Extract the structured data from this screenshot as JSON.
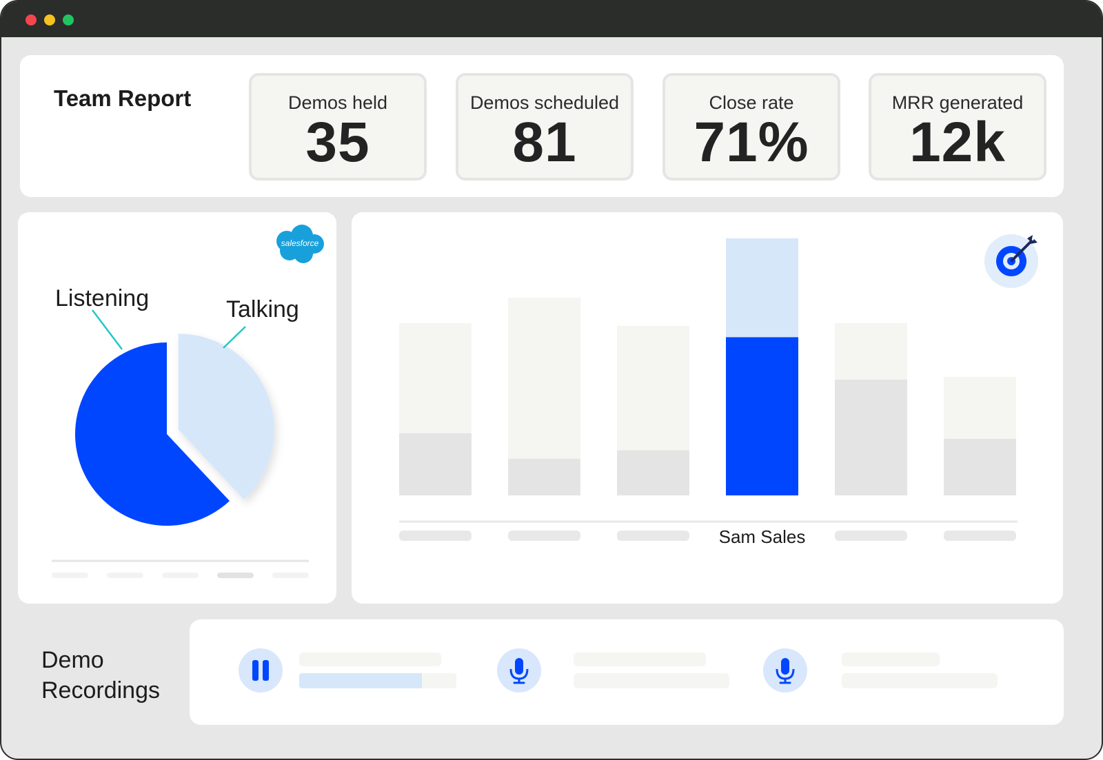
{
  "colors": {
    "accent": "#0046ff",
    "accent_light": "#d6e7fa",
    "bar_top": "#f5f5f2",
    "bar_bottom": "#e4e4e4",
    "chrome": "#2b2d2b",
    "teal": "#22c8c4"
  },
  "window": {
    "controls": [
      "close",
      "minimize",
      "maximize"
    ]
  },
  "report": {
    "title": "Team Report",
    "stats": [
      {
        "label": "Demos held",
        "value": "35"
      },
      {
        "label": "Demos scheduled",
        "value": "81"
      },
      {
        "label": "Close rate",
        "value": "71%"
      },
      {
        "label": "MRR generated",
        "value": "12k"
      }
    ]
  },
  "talk_ratio": {
    "integration_logo": "salesforce",
    "listening_label": "Listening",
    "talking_label": "Talking"
  },
  "chart_data": [
    {
      "type": "pie",
      "labels": [
        "Listening",
        "Talking"
      ],
      "values": [
        62,
        38
      ]
    },
    {
      "type": "bar",
      "categories": [
        "",
        "",
        "",
        "Sam Sales",
        "",
        ""
      ],
      "highlighted": "Sam Sales",
      "series": [
        {
          "values": [
            22,
            13,
            16,
            56,
            41,
            20
          ]
        },
        {
          "values": [
            39,
            57,
            44,
            35,
            20,
            22
          ]
        }
      ],
      "ylim": [
        0,
        100
      ]
    }
  ],
  "goal": {
    "icon": "target-icon"
  },
  "recordings": {
    "title_line1": "Demo",
    "title_line2": "Recordings",
    "items": [
      {
        "icon": "pause-icon",
        "progress": 0.78
      },
      {
        "icon": "microphone-icon"
      },
      {
        "icon": "microphone-icon"
      }
    ]
  }
}
